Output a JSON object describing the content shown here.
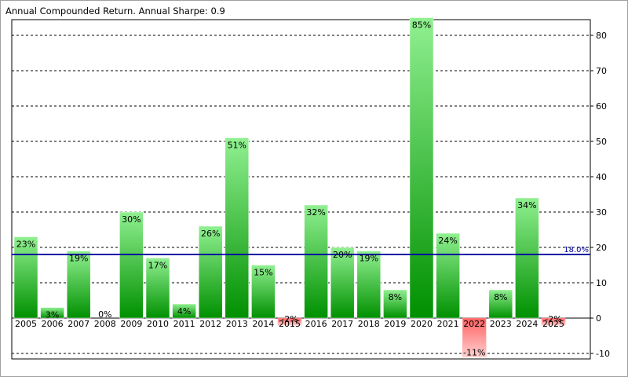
{
  "title": "Annual Compounded Return.  Annual Sharpe: 0.9",
  "colors": {
    "positive_top": "#90f090",
    "positive_bottom": "#009000",
    "negative_top": "#ff6060",
    "negative_bottom": "#ffd0d0",
    "reference_line": "#0000a0",
    "grid": "#000000"
  },
  "chart_data": {
    "type": "bar",
    "categories": [
      "2005",
      "2006",
      "2007",
      "2008",
      "2009",
      "2010",
      "2011",
      "2012",
      "2013",
      "2014",
      "2015",
      "2016",
      "2017",
      "2018",
      "2019",
      "2020",
      "2021",
      "2022",
      "2023",
      "2024",
      "2025"
    ],
    "values": [
      23,
      3,
      19,
      0,
      30,
      17,
      4,
      26,
      51,
      15,
      -2,
      32,
      20,
      19,
      8,
      85,
      24,
      -11,
      8,
      34,
      -2
    ],
    "data_labels": [
      "23%",
      "3%",
      "19%",
      "0%",
      "30%",
      "17%",
      "4%",
      "26%",
      "51%",
      "15%",
      "-2%",
      "32%",
      "20%",
      "19%",
      "8%",
      "85%",
      "24%",
      "-11%",
      "8%",
      "34%",
      "-2%"
    ],
    "ylim": [
      -10,
      85
    ],
    "yticks": [
      -10,
      0,
      10,
      20,
      30,
      40,
      50,
      60,
      70,
      80
    ],
    "ytick_labels": [
      "-10",
      "0",
      "10",
      "20",
      "30",
      "40",
      "50",
      "60",
      "70",
      "80"
    ],
    "y_axis_side": "right",
    "grid": "horizontal dashed",
    "reference_line": {
      "value": 18.0,
      "label": "18.0%"
    }
  }
}
